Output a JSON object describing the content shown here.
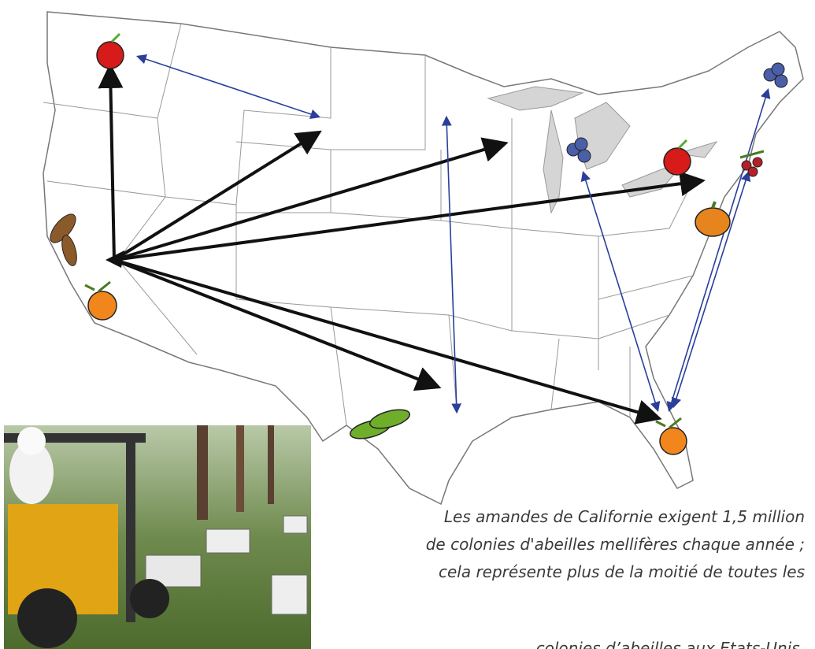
{
  "caption": {
    "lines": [
      "Les amandes de Californie exigent 1,5 million",
      "de colonies d'abeilles mellifères chaque année ;",
      "cela représente plus de la moitié de toutes les",
      "colonies d’abeilles  aux Etats-Unis."
    ]
  }
}
